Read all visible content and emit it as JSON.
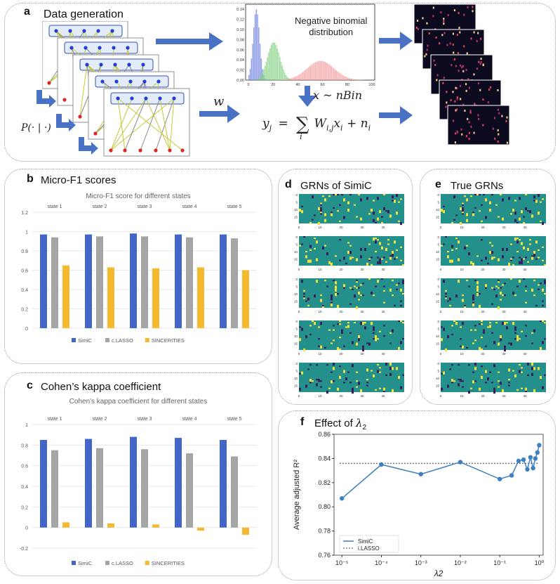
{
  "panel_a": {
    "label": "a",
    "title": "Data generation",
    "dist_title_line1": "Negative binomial",
    "dist_title_line2": "distribution",
    "dist_y_ticks": [
      "0.14",
      "0.12",
      "0.10",
      "0.08",
      "0.06",
      "0.04",
      "0.02",
      "0.00"
    ],
    "dist_x_ticks": [
      "0",
      "20",
      "40",
      "60",
      "80",
      "100"
    ],
    "prob_label": "P(· | ·)",
    "w_label": "w",
    "sample_eq": "x ~ nBin",
    "model_eq_lhs": "y",
    "model_eq_sub": "j",
    "model_eq_sum_index": "i",
    "model_eq_rhs": "W",
    "model_eq_w_sub": "i,j",
    "model_eq_x": "x",
    "model_eq_x_sub": "i",
    "model_eq_noise": "+ n",
    "model_eq_noise_sub": "i",
    "colors": {
      "arrow": "#4a72c4",
      "gene_node": "#1f3fd4",
      "target_node": "#d62828",
      "edge": "#c8c83a",
      "grey_edge": "#888888"
    }
  },
  "panel_b": {
    "label": "b",
    "title": "Micro-F1 scores"
  },
  "panel_c": {
    "label": "c",
    "title": "Cohen’s kappa coefficient"
  },
  "panel_d": {
    "label": "d",
    "title": "GRNs of SimiC",
    "x_ticks": [
      "0",
      "10",
      "20",
      "30",
      "40"
    ],
    "y_ticks": [
      "0",
      "5",
      "10",
      "15"
    ]
  },
  "panel_e": {
    "label": "e",
    "title": "True GRNs",
    "x_ticks": [
      "0",
      "10",
      "20",
      "30",
      "40"
    ],
    "y_ticks": [
      "0",
      "5",
      "10",
      "15"
    ]
  },
  "panel_f": {
    "label": "f",
    "title": "Effect of",
    "title_symbol": "λ",
    "title_sub": "2"
  },
  "chart_data": [
    {
      "type": "bar",
      "title": "Micro-F1 score for different states",
      "categories": [
        "state 1",
        "state 2",
        "state 3",
        "state 4",
        "state 5"
      ],
      "series": [
        {
          "name": "SimiC",
          "color": "#4465c8",
          "values": [
            0.97,
            0.97,
            0.98,
            0.97,
            0.97
          ]
        },
        {
          "name": "c.LASSO",
          "color": "#a5a5a5",
          "values": [
            0.94,
            0.95,
            0.95,
            0.94,
            0.93
          ]
        },
        {
          "name": "SINCERITIES",
          "color": "#f4b92e",
          "values": [
            0.65,
            0.63,
            0.62,
            0.63,
            0.6
          ]
        }
      ],
      "ylim": [
        0,
        1.2
      ],
      "y_ticks": [
        "0",
        "0.2",
        "0.4",
        "0.6",
        "0.8",
        "1",
        "1.2"
      ],
      "legend": "bottom"
    },
    {
      "type": "bar",
      "title": "Cohen's kappa coefficient for different states",
      "categories": [
        "state 1",
        "state 2",
        "state 3",
        "state 4",
        "state 5"
      ],
      "series": [
        {
          "name": "SimiC",
          "color": "#4465c8",
          "values": [
            0.85,
            0.86,
            0.88,
            0.87,
            0.85
          ]
        },
        {
          "name": "c.LASSO",
          "color": "#a5a5a5",
          "values": [
            0.75,
            0.77,
            0.76,
            0.72,
            0.69
          ]
        },
        {
          "name": "SINCERITIES",
          "color": "#f4b92e",
          "values": [
            0.05,
            0.04,
            0.03,
            -0.03,
            -0.07
          ]
        }
      ],
      "ylim": [
        -0.2,
        1.0
      ],
      "y_ticks": [
        "-0.2",
        "0",
        "0.2",
        "0.4",
        "0.6",
        "0.8",
        "1"
      ],
      "legend": "bottom"
    },
    {
      "type": "line",
      "xlabel": "λ2",
      "ylabel": "Average adjusted R²",
      "x_scale": "log",
      "x_ticks": [
        "10⁻⁵",
        "10⁻⁴",
        "10⁻³",
        "10⁻²",
        "10⁻¹",
        "10⁰"
      ],
      "y_ticks": [
        "0.76",
        "0.78",
        "0.80",
        "0.82",
        "0.84",
        "0.86"
      ],
      "ylim": [
        0.76,
        0.86
      ],
      "xlim_log10": [
        -5.2,
        0.1
      ],
      "series": [
        {
          "name": "SimiC",
          "style": "solid",
          "color": "#3f7fbf",
          "x": [
            1e-05,
            0.0001,
            0.001,
            0.01,
            0.1,
            0.2,
            0.3,
            0.4,
            0.5,
            0.6,
            0.7,
            0.8,
            0.9,
            1.0
          ],
          "y": [
            0.807,
            0.835,
            0.827,
            0.837,
            0.823,
            0.826,
            0.838,
            0.839,
            0.831,
            0.841,
            0.832,
            0.84,
            0.845,
            0.851
          ]
        },
        {
          "name": "i.LASSO",
          "style": "dotted",
          "color": "#444444",
          "y_const": 0.836
        }
      ],
      "legend": "bottom-left"
    }
  ]
}
